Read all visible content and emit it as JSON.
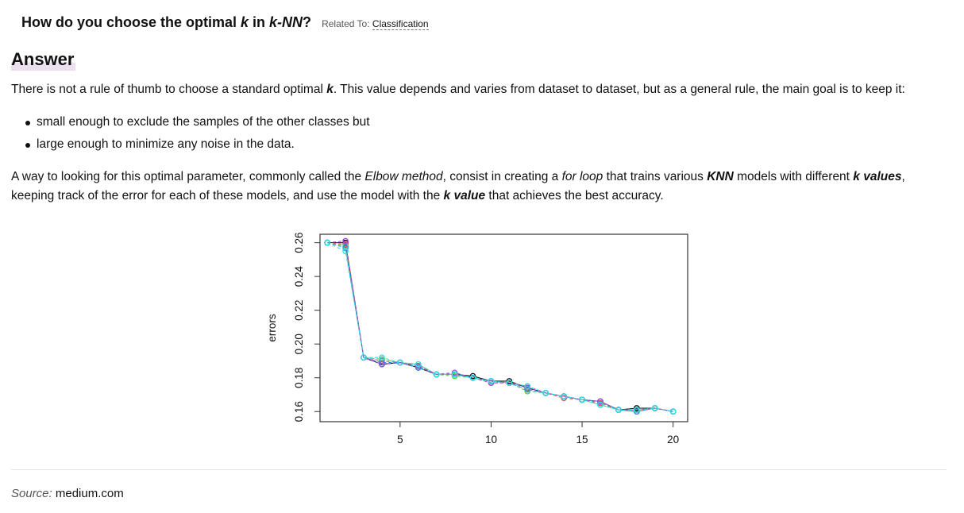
{
  "question": {
    "prefix": "How do you choose the optimal ",
    "k": "k",
    "middle": " in ",
    "knn": "k-NN",
    "suffix": "?",
    "related_label": "Related To:",
    "related_link": "Classification"
  },
  "answer_heading": "Answer",
  "paragraph1": {
    "text1": "There is not a rule of thumb to choose a standard optimal ",
    "k": "k",
    "text2": ". This value depends and varies from dataset to dataset, but as a general rule, the main goal is to keep it:"
  },
  "bullets": [
    "small enough to exclude the samples of the other classes but",
    "large enough to minimize any noise in the data."
  ],
  "paragraph2": {
    "t1": "A way to looking for this optimal parameter, commonly called the ",
    "elbow": "Elbow method",
    "t2": ", consist in creating a ",
    "forloop": "for loop",
    "t3": " that trains various ",
    "knn": "KNN",
    "t4": " models with different ",
    "kvalues": "k values",
    "t5": ", keeping track of the error for each of these models, and use the model with the ",
    "kvalue": "k value",
    "t6": " that achieves the best accuracy."
  },
  "chart_data": {
    "type": "line",
    "ylabel": "errors",
    "xlabel": "",
    "xlim": [
      0.6,
      20.8
    ],
    "ylim": [
      0.154,
      0.265
    ],
    "xticks": [
      5,
      10,
      15,
      20
    ],
    "yticks": [
      0.16,
      0.18,
      0.2,
      0.22,
      0.24,
      0.26
    ],
    "grid": false,
    "x": [
      1,
      2,
      3,
      4,
      5,
      6,
      7,
      8,
      9,
      10,
      11,
      12,
      13,
      14,
      15,
      16,
      17,
      18,
      19,
      20
    ],
    "series": [
      {
        "color": "#111111",
        "values": [
          0.26,
          0.26,
          0.192,
          0.188,
          0.189,
          0.186,
          0.182,
          0.182,
          0.181,
          0.178,
          0.178,
          0.174,
          0.171,
          0.169,
          0.167,
          0.166,
          0.161,
          0.162,
          0.162,
          0.16
        ]
      },
      {
        "color": "#df536b",
        "values": [
          0.26,
          0.259,
          0.192,
          0.19,
          0.189,
          0.187,
          0.182,
          0.182,
          0.18,
          0.177,
          0.177,
          0.175,
          0.171,
          0.168,
          0.167,
          0.165,
          0.161,
          0.16,
          0.162,
          0.16
        ]
      },
      {
        "color": "#61d04f",
        "values": [
          0.26,
          0.258,
          0.192,
          0.191,
          0.189,
          0.188,
          0.182,
          0.181,
          0.18,
          0.178,
          0.177,
          0.172,
          0.171,
          0.169,
          0.167,
          0.164,
          0.161,
          0.161,
          0.162,
          0.16
        ]
      },
      {
        "color": "#2297e6",
        "values": [
          0.26,
          0.257,
          0.192,
          0.189,
          0.189,
          0.186,
          0.182,
          0.182,
          0.18,
          0.178,
          0.177,
          0.173,
          0.171,
          0.169,
          0.167,
          0.166,
          0.161,
          0.16,
          0.162,
          0.16
        ]
      },
      {
        "color": "#9e4fd8",
        "values": [
          0.26,
          0.261,
          0.192,
          0.188,
          0.189,
          0.187,
          0.182,
          0.183,
          0.18,
          0.177,
          0.177,
          0.174,
          0.171,
          0.169,
          0.167,
          0.166,
          0.161,
          0.161,
          0.162,
          0.16
        ]
      },
      {
        "color": "#28e2e5",
        "values": [
          0.26,
          0.255,
          0.192,
          0.192,
          0.189,
          0.188,
          0.182,
          0.182,
          0.18,
          0.178,
          0.177,
          0.175,
          0.171,
          0.169,
          0.167,
          0.164,
          0.161,
          0.161,
          0.162,
          0.16
        ]
      }
    ]
  },
  "source": {
    "label": "Source:",
    "value": "medium.com"
  }
}
